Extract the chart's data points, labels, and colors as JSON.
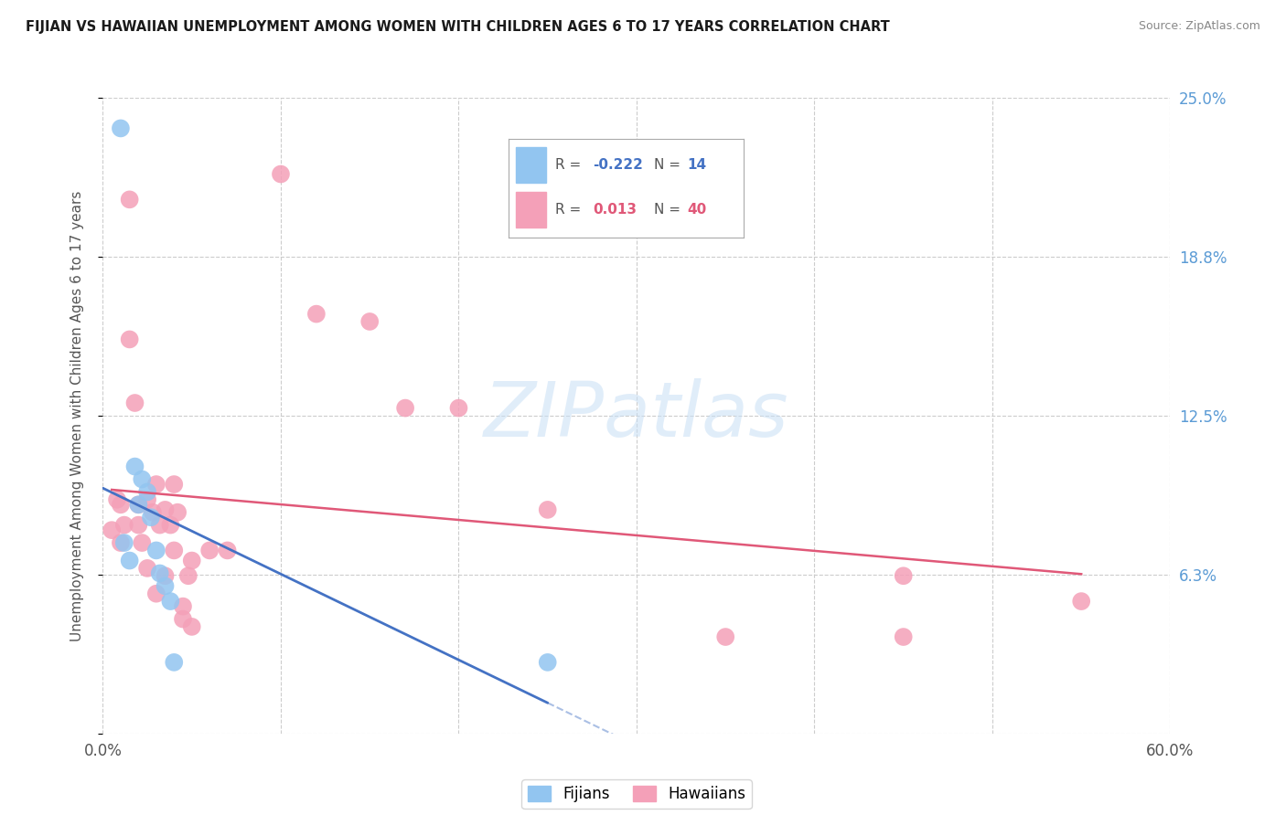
{
  "title": "FIJIAN VS HAWAIIAN UNEMPLOYMENT AMONG WOMEN WITH CHILDREN AGES 6 TO 17 YEARS CORRELATION CHART",
  "source": "Source: ZipAtlas.com",
  "ylabel": "Unemployment Among Women with Children Ages 6 to 17 years",
  "xlim": [
    0.0,
    0.6
  ],
  "ylim": [
    0.0,
    0.25
  ],
  "xticks": [
    0.0,
    0.1,
    0.2,
    0.3,
    0.4,
    0.5,
    0.6
  ],
  "xticklabels": [
    "0.0%",
    "",
    "",
    "",
    "",
    "",
    "60.0%"
  ],
  "ytick_positions": [
    0.0,
    0.0625,
    0.125,
    0.1875,
    0.25
  ],
  "yticklabels": [
    "",
    "6.3%",
    "12.5%",
    "18.8%",
    "25.0%"
  ],
  "fijian_color": "#92c5f0",
  "hawaiian_color": "#f4a0b8",
  "fijian_line_color": "#4472c4",
  "hawaiian_line_color": "#e05878",
  "fijian_R": -0.222,
  "fijian_N": 14,
  "hawaiian_R": 0.013,
  "hawaiian_N": 40,
  "fijian_x": [
    0.01,
    0.012,
    0.015,
    0.018,
    0.02,
    0.022,
    0.025,
    0.027,
    0.03,
    0.032,
    0.035,
    0.038,
    0.04,
    0.25
  ],
  "fijian_y": [
    0.238,
    0.075,
    0.068,
    0.105,
    0.09,
    0.1,
    0.095,
    0.085,
    0.072,
    0.063,
    0.058,
    0.052,
    0.028,
    0.028
  ],
  "hawaiian_x": [
    0.005,
    0.008,
    0.01,
    0.01,
    0.012,
    0.015,
    0.015,
    0.018,
    0.02,
    0.02,
    0.022,
    0.025,
    0.025,
    0.028,
    0.03,
    0.03,
    0.032,
    0.035,
    0.035,
    0.038,
    0.04,
    0.04,
    0.042,
    0.045,
    0.045,
    0.048,
    0.05,
    0.05,
    0.06,
    0.07,
    0.1,
    0.12,
    0.15,
    0.17,
    0.2,
    0.25,
    0.35,
    0.45,
    0.45,
    0.55
  ],
  "hawaiian_y": [
    0.08,
    0.092,
    0.09,
    0.075,
    0.082,
    0.21,
    0.155,
    0.13,
    0.09,
    0.082,
    0.075,
    0.092,
    0.065,
    0.087,
    0.098,
    0.055,
    0.082,
    0.088,
    0.062,
    0.082,
    0.072,
    0.098,
    0.087,
    0.045,
    0.05,
    0.062,
    0.042,
    0.068,
    0.072,
    0.072,
    0.22,
    0.165,
    0.162,
    0.128,
    0.128,
    0.088,
    0.038,
    0.038,
    0.062,
    0.052
  ],
  "watermark_text": "ZIPatlas",
  "background_color": "#ffffff",
  "grid_color": "#cccccc"
}
